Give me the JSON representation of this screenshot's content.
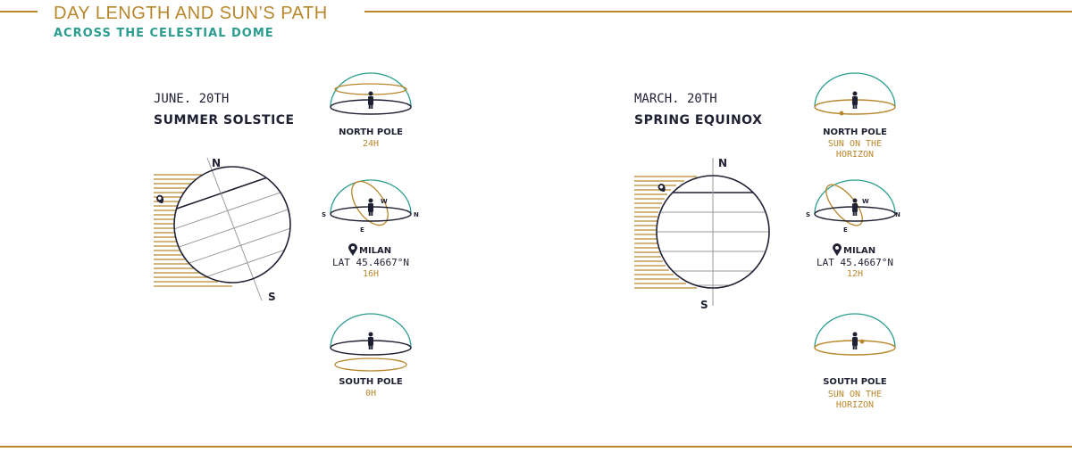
{
  "header": {
    "title": "DAY LENGTH AND SUN’S PATH",
    "subtitle": "ACROSS THE CELESTIAL DOME"
  },
  "colors": {
    "gold": "#b8862b",
    "teal": "#2a9d8f",
    "dark": "#1f2133",
    "gray": "#9a9a9a"
  },
  "panels": [
    {
      "date": "JUNE. 20TH",
      "season": "SUMMER SOLSTICE",
      "globe_labels": {
        "north": "N",
        "south": "S"
      },
      "domes": {
        "north_pole": {
          "name": "NORTH POLE",
          "value": "24H"
        },
        "milan": {
          "name": "MILAN",
          "lat": "LAT 45.4667°N",
          "value": "16H",
          "directions": {
            "south": "S",
            "north": "N",
            "east": "E",
            "west": "W"
          }
        },
        "south_pole": {
          "name": "SOUTH POLE",
          "value": "0H"
        }
      }
    },
    {
      "date": "MARCH. 20TH",
      "season": "SPRING EQUINOX",
      "globe_labels": {
        "north": "N",
        "south": "S"
      },
      "domes": {
        "north_pole": {
          "name": "NORTH POLE",
          "value_line1": "SUN ON THE",
          "value_line2": "HORIZON"
        },
        "milan": {
          "name": "MILAN",
          "lat": "LAT 45.4667°N",
          "value": "12H",
          "directions": {
            "south": "S",
            "north": "N",
            "east": "E",
            "west": "W"
          }
        },
        "south_pole": {
          "name": "SOUTH POLE",
          "value_line1": "SUN ON THE",
          "value_line2": "HORIZON"
        }
      }
    }
  ]
}
